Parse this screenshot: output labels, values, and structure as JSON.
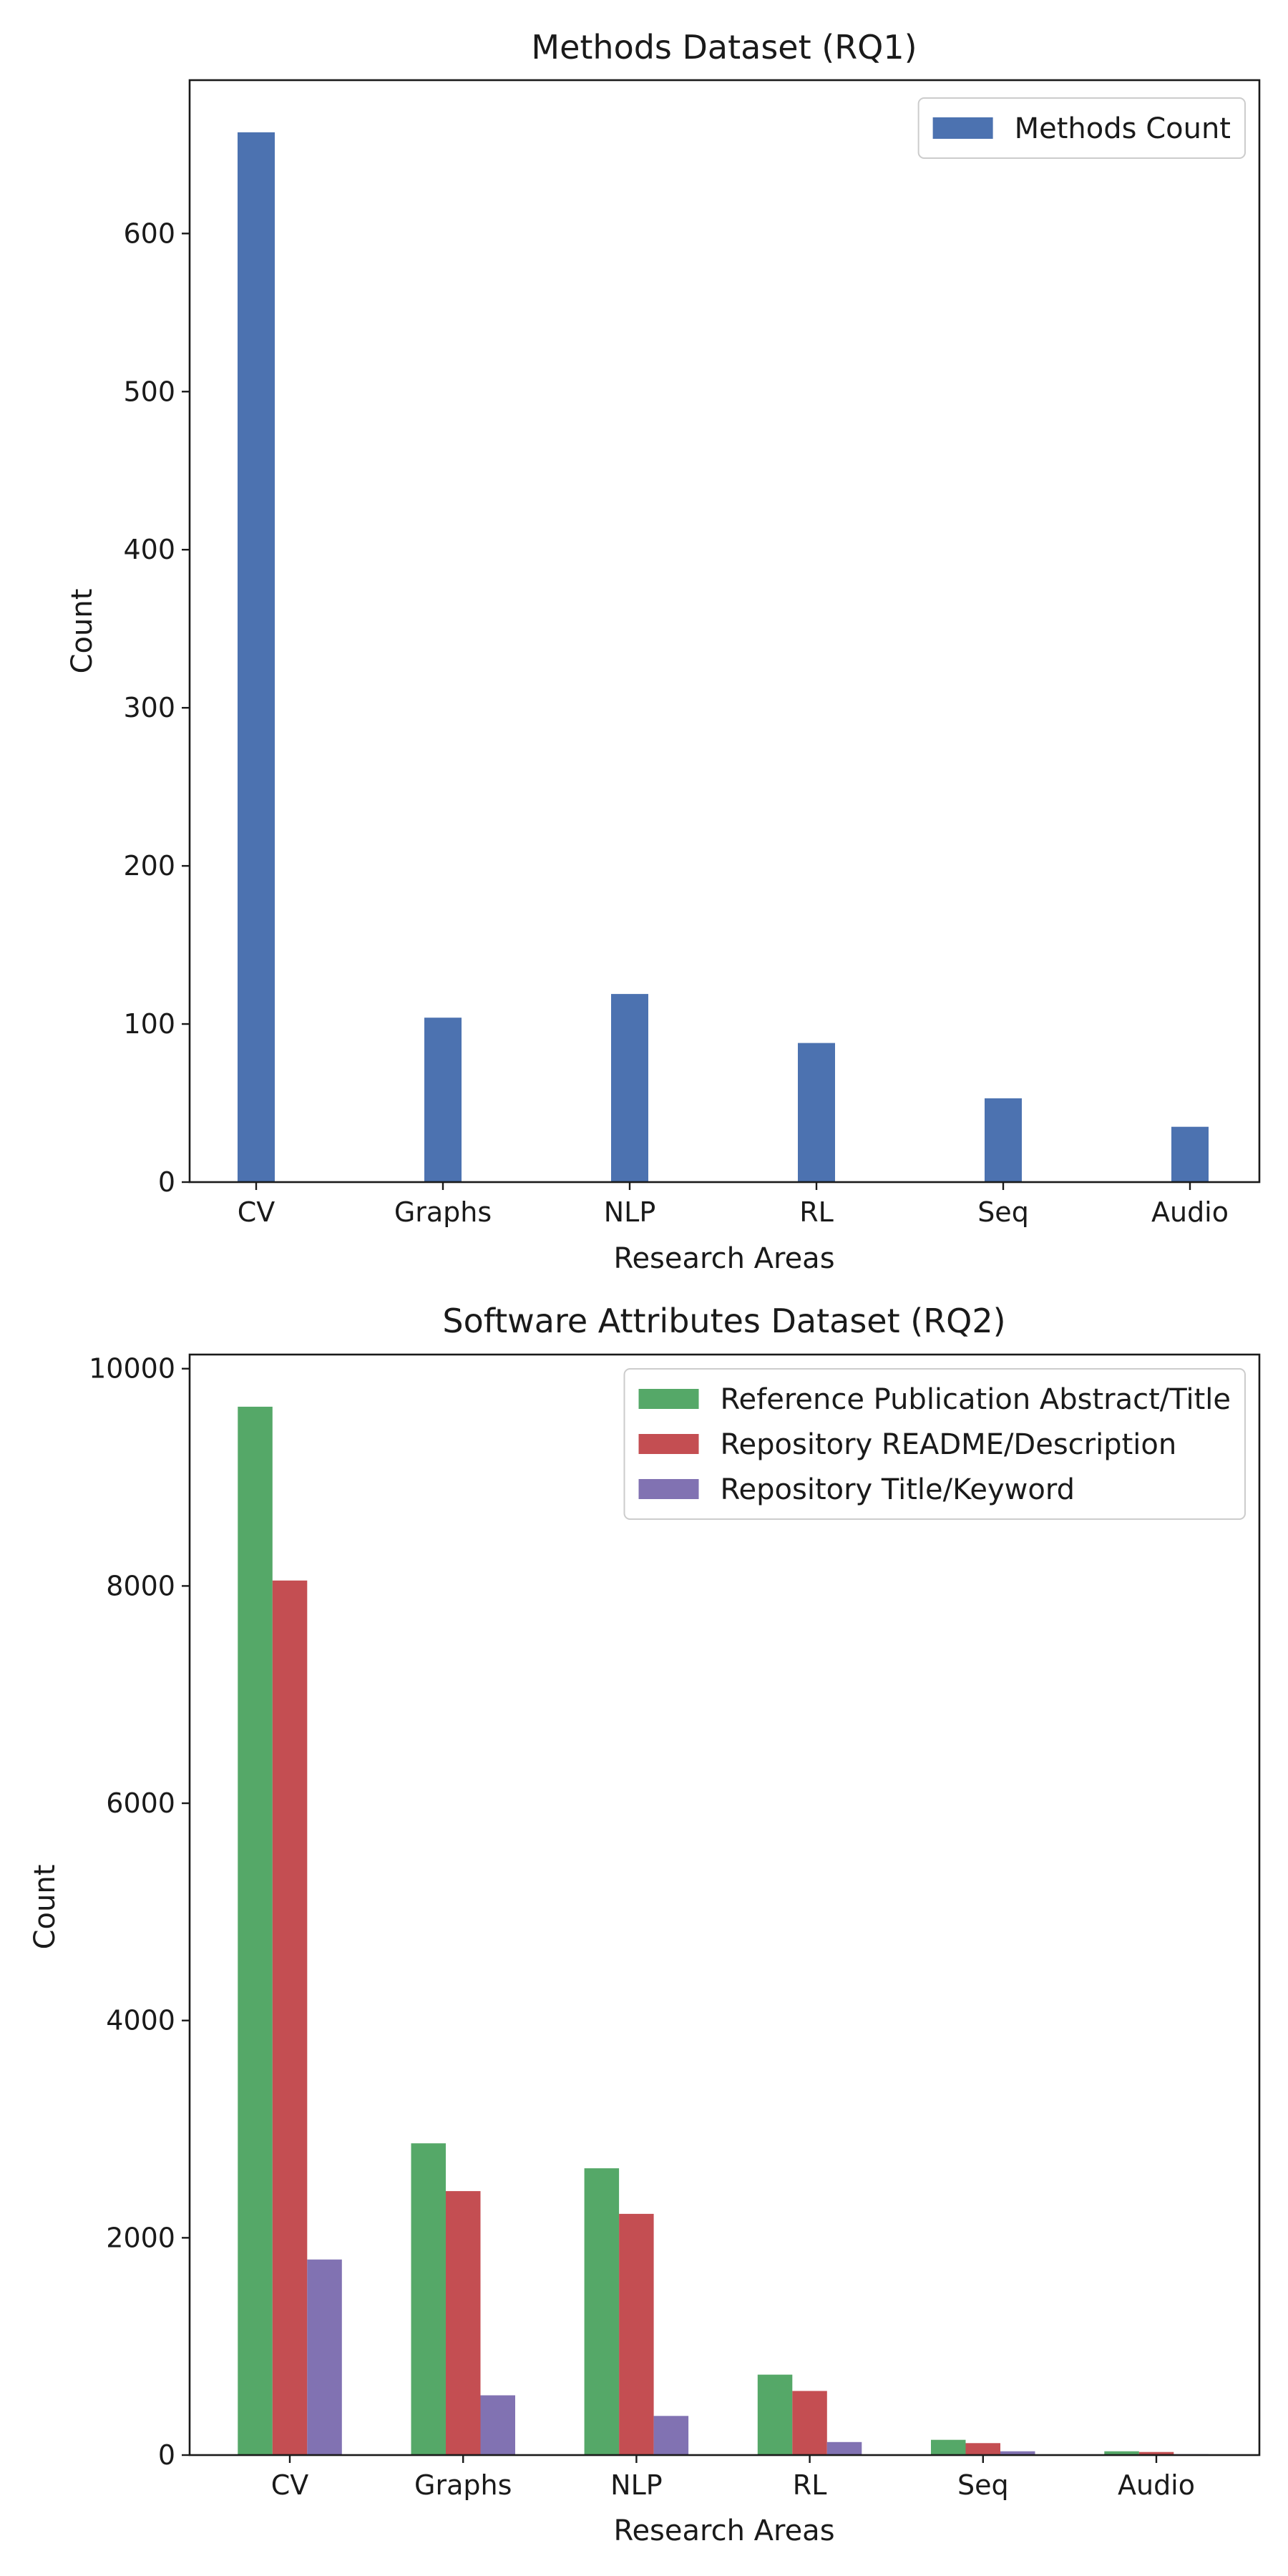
{
  "chart_data": [
    {
      "type": "bar",
      "title": "Methods Dataset (RQ1)",
      "xlabel": "Research Areas",
      "ylabel": "Count",
      "categories": [
        "CV",
        "Graphs",
        "NLP",
        "RL",
        "Seq",
        "Audio"
      ],
      "series": [
        {
          "name": "Methods Count",
          "values": [
            664,
            104,
            119,
            88,
            53,
            35
          ],
          "color": "#4C72B0"
        }
      ],
      "ylim": [
        0,
        697
      ],
      "yticks": [
        0,
        100,
        200,
        300,
        400,
        500,
        600
      ],
      "grid": false,
      "legend": "top-right"
    },
    {
      "type": "bar",
      "title": "Software Attributes Dataset (RQ2)",
      "xlabel": "Research Areas",
      "ylabel": "Count",
      "categories": [
        "CV",
        "Graphs",
        "NLP",
        "RL",
        "Seq",
        "Audio"
      ],
      "series": [
        {
          "name": "Reference Publication Abstract/Title",
          "values": [
            9650,
            2870,
            2640,
            740,
            140,
            35
          ],
          "color": "#55A868"
        },
        {
          "name": "Repository README/Description",
          "values": [
            8050,
            2430,
            2220,
            590,
            110,
            28
          ],
          "color": "#C44E52"
        },
        {
          "name": "Repository Title/Keyword",
          "values": [
            1800,
            550,
            360,
            120,
            35,
            8
          ],
          "color": "#8172B2"
        }
      ],
      "ylim": [
        0,
        10130
      ],
      "yticks": [
        0,
        2000,
        4000,
        6000,
        8000,
        10000
      ],
      "grid": false,
      "legend": "top-right"
    }
  ]
}
